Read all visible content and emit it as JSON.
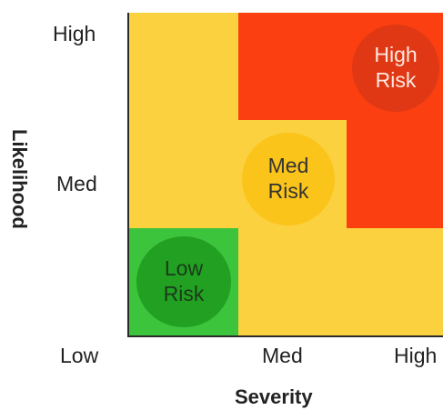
{
  "axes": {
    "y_title": "Likelihood",
    "x_title": "Severity",
    "y_ticks": [
      "High",
      "Med",
      "Low"
    ],
    "x_ticks": [
      "Med",
      "High"
    ]
  },
  "zones": [
    {
      "name": "low",
      "badge_line1": "Low",
      "badge_line2": "Risk"
    },
    {
      "name": "med",
      "badge_line1": "Med",
      "badge_line2": "Risk"
    },
    {
      "name": "high",
      "badge_line1": "High",
      "badge_line2": "Risk"
    }
  ],
  "colors": {
    "low_zone": "#3cc43c",
    "low_badge": "#22a022",
    "low_text": "#1a3a1a",
    "med_zone": "#fcd13f",
    "med_badge": "#fac41a",
    "med_text": "#333333",
    "high_zone": "#fc3f10",
    "high_badge": "#e03814",
    "high_text": "#ffe8e0",
    "axis_line": "#2a2a2a"
  }
}
